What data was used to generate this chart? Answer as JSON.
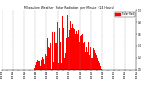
{
  "title": "Milwaukee Weather  Solar Radiation  per Minute  (24 Hours)",
  "bar_color": "#ff0000",
  "background_color": "#ffffff",
  "plot_bg_color": "#ffffff",
  "grid_color": "#888888",
  "ylim": [
    0,
    1.0
  ],
  "yticks": [
    0.0,
    0.2,
    0.4,
    0.6,
    0.8,
    1.0
  ],
  "legend_label": "Solar Rad",
  "legend_color": "#ff0000",
  "num_bars": 1440,
  "seed": 7
}
